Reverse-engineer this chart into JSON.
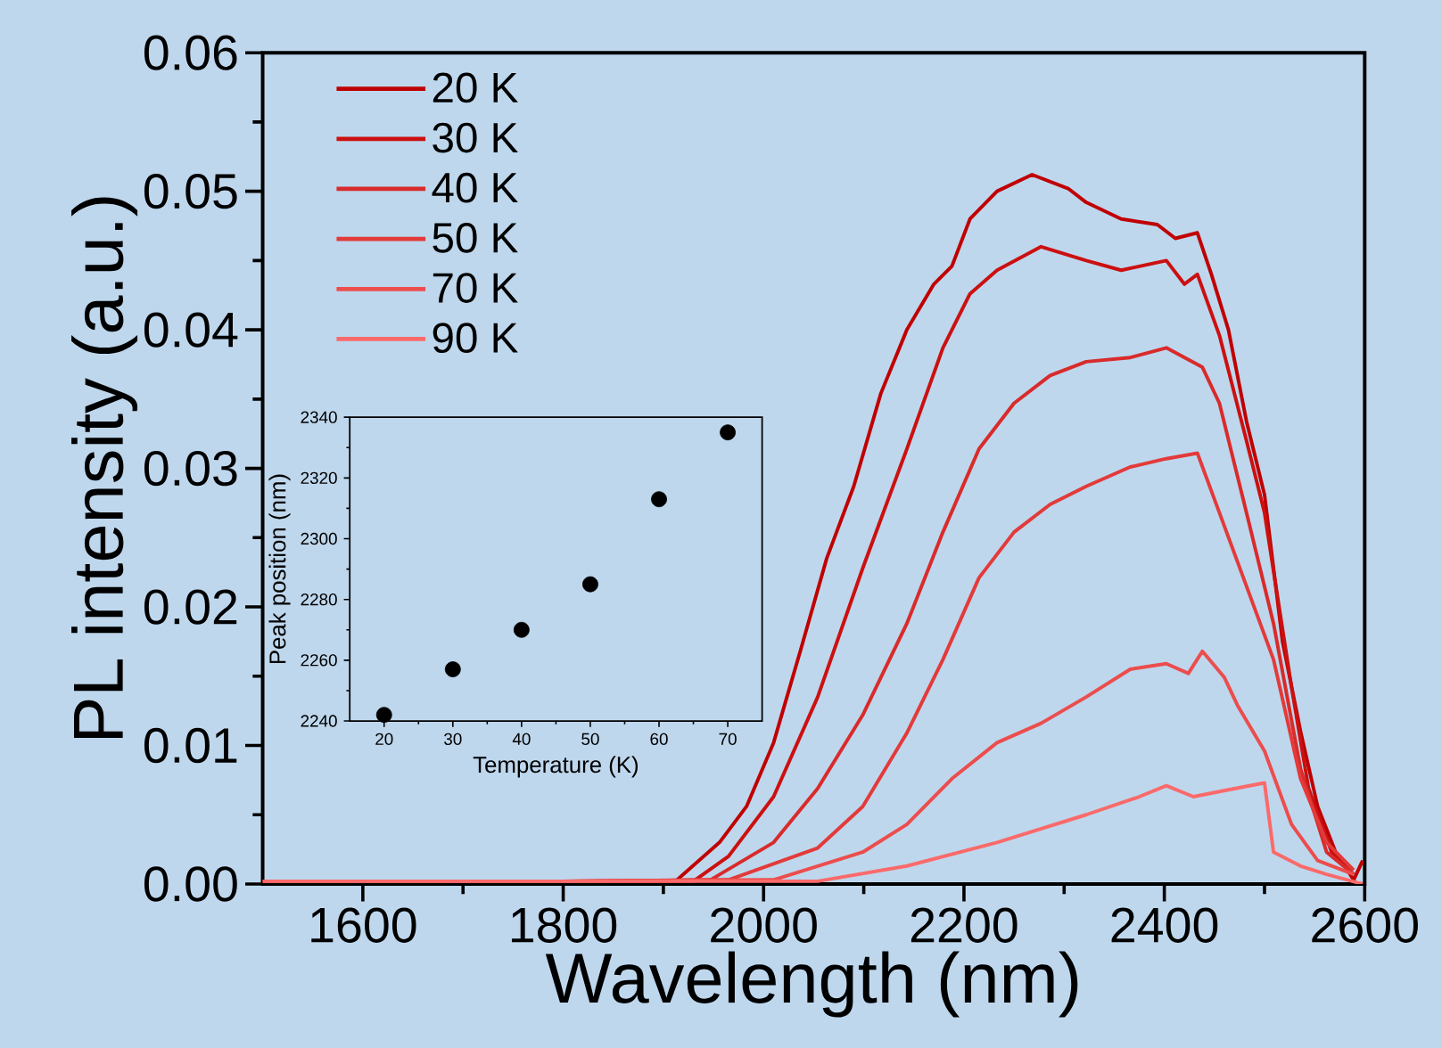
{
  "chart_data": [
    {
      "type": "line",
      "xlabel": "Wavelength (nm)",
      "ylabel": "PL intensity (a.u.)",
      "xlim": [
        1500,
        2600
      ],
      "ylim": [
        0,
        0.06
      ],
      "xticks": [
        1600,
        1800,
        2000,
        2200,
        2400,
        2600
      ],
      "yticks": [
        {
          "value": 0,
          "label": "0.00"
        },
        {
          "value": 0.01,
          "label": "0.01"
        },
        {
          "value": 0.02,
          "label": "0.02"
        },
        {
          "value": 0.03,
          "label": "0.03"
        },
        {
          "value": 0.04,
          "label": "0.04"
        },
        {
          "value": 0.05,
          "label": "0.05"
        },
        {
          "value": 0.06,
          "label": "0.06"
        }
      ],
      "legend": "top left",
      "line_style": "solid",
      "series": [
        {
          "name": "20 K",
          "color": "#c00000",
          "x": [
            1500,
            1800,
            1912,
            1956,
            1983,
            2010,
            2037,
            2063,
            2090,
            2117,
            2143,
            2170,
            2188,
            2206,
            2233,
            2268,
            2304,
            2322,
            2357,
            2393,
            2411,
            2433,
            2447,
            2464,
            2482,
            2500,
            2518,
            2536,
            2553,
            2571,
            2589,
            2598
          ],
          "values": [
            0.0002,
            0.0002,
            0.0002,
            0.003,
            0.0056,
            0.0102,
            0.0169,
            0.0235,
            0.0287,
            0.0354,
            0.04,
            0.0433,
            0.0446,
            0.048,
            0.05,
            0.0512,
            0.0502,
            0.0492,
            0.048,
            0.0476,
            0.0466,
            0.047,
            0.044,
            0.04,
            0.0334,
            0.0281,
            0.0175,
            0.011,
            0.0056,
            0.0023,
            0.0003,
            0.0017
          ]
        },
        {
          "name": "30 K",
          "color": "#cc1010",
          "x": [
            1500,
            1800,
            1930,
            1965,
            2010,
            2054,
            2099,
            2143,
            2179,
            2206,
            2233,
            2277,
            2322,
            2357,
            2402,
            2420,
            2433,
            2455,
            2482,
            2500,
            2527,
            2544,
            2567,
            2589
          ],
          "values": [
            0.0002,
            0.0002,
            0.0002,
            0.002,
            0.0063,
            0.0135,
            0.0228,
            0.0314,
            0.0387,
            0.0426,
            0.0443,
            0.046,
            0.045,
            0.0443,
            0.045,
            0.0433,
            0.044,
            0.0396,
            0.032,
            0.0268,
            0.0142,
            0.0069,
            0.0023,
            0.0007
          ]
        },
        {
          "name": "40 K",
          "color": "#d92b2b",
          "x": [
            1500,
            1800,
            1947,
            2010,
            2054,
            2099,
            2143,
            2179,
            2215,
            2250,
            2286,
            2322,
            2366,
            2402,
            2438,
            2455,
            2482,
            2509,
            2536,
            2562,
            2589
          ],
          "values": [
            0.0002,
            0.0002,
            0.0003,
            0.003,
            0.0069,
            0.0122,
            0.0188,
            0.0254,
            0.0314,
            0.0347,
            0.0367,
            0.0377,
            0.038,
            0.0387,
            0.0373,
            0.0347,
            0.0268,
            0.0188,
            0.0083,
            0.0023,
            0.0007
          ]
        },
        {
          "name": "50 K",
          "color": "#e33a3a",
          "x": [
            1500,
            1800,
            1965,
            2054,
            2099,
            2143,
            2179,
            2215,
            2250,
            2286,
            2322,
            2366,
            2402,
            2433,
            2455,
            2482,
            2509,
            2536,
            2562,
            2589
          ],
          "values": [
            0.0002,
            0.0002,
            0.0003,
            0.0026,
            0.0056,
            0.0109,
            0.0162,
            0.0221,
            0.0254,
            0.0274,
            0.0287,
            0.0301,
            0.0307,
            0.0311,
            0.0268,
            0.0215,
            0.0162,
            0.0076,
            0.003,
            0.001
          ]
        },
        {
          "name": "70 K",
          "color": "#ec4d4d",
          "x": [
            1500,
            1800,
            2010,
            2099,
            2143,
            2188,
            2233,
            2277,
            2322,
            2366,
            2402,
            2424,
            2438,
            2460,
            2473,
            2500,
            2527,
            2553,
            2589
          ],
          "values": [
            0.0002,
            0.0002,
            0.0003,
            0.0023,
            0.0043,
            0.0076,
            0.0102,
            0.0116,
            0.0135,
            0.0155,
            0.0159,
            0.0152,
            0.0168,
            0.0149,
            0.0129,
            0.0096,
            0.0043,
            0.0017,
            0.0007
          ]
        },
        {
          "name": "90 K",
          "color": "#fb6a6a",
          "x": [
            1500,
            1800,
            2054,
            2143,
            2233,
            2322,
            2375,
            2402,
            2429,
            2464,
            2500,
            2509,
            2536,
            2562,
            2598
          ],
          "values": [
            0.0002,
            0.0002,
            0.0002,
            0.0013,
            0.003,
            0.005,
            0.0063,
            0.0071,
            0.0063,
            0.0068,
            0.0073,
            0.0023,
            0.0013,
            0.0007,
            0
          ]
        }
      ]
    },
    {
      "type": "scatter",
      "xlabel": "Temperature (K)",
      "ylabel": "Peak position (nm)",
      "xlim": [
        15,
        75
      ],
      "ylim": [
        2240,
        2340
      ],
      "xticks": [
        20,
        30,
        40,
        50,
        60,
        70
      ],
      "yticks": [
        2240,
        2260,
        2280,
        2300,
        2320,
        2340
      ],
      "marker": "circle",
      "series": [
        {
          "color": "#000000",
          "x": [
            20,
            30,
            40,
            50,
            60,
            70
          ],
          "values": [
            2242,
            2257,
            2270,
            2285,
            2313,
            2335
          ]
        }
      ]
    }
  ]
}
